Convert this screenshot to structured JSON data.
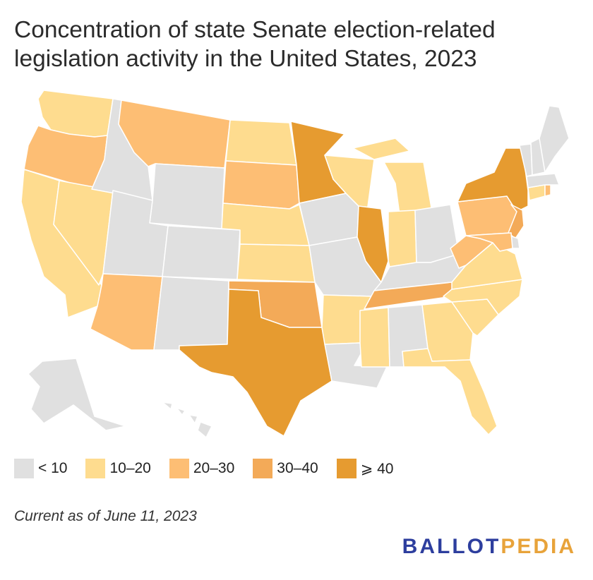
{
  "title": "Concentration of state Senate election-related legislation activity in the United States, 2023",
  "note": "Current as of June 11, 2023",
  "brand": {
    "part1": "BALLOT",
    "part2": "PEDIA",
    "color1": "#2d3e9e",
    "color2": "#e8a33a"
  },
  "colors": {
    "lt10": "#e0e0e0",
    "10to20": "#fedc8f",
    "20to30": "#fdbe74",
    "30to40": "#f3aa58",
    "gte40": "#e69b30",
    "border": "#ffffff"
  },
  "legend": [
    {
      "key": "lt10",
      "label": "< 10"
    },
    {
      "key": "10to20",
      "label": "10–20"
    },
    {
      "key": "20to30",
      "label": "20–30"
    },
    {
      "key": "30to40",
      "label": "30–40"
    },
    {
      "key": "gte40",
      "label": "⩾ 40"
    }
  ],
  "states": {
    "WA": "10to20",
    "OR": "20to30",
    "CA": "10to20",
    "NV": "10to20",
    "ID": "lt10",
    "MT": "20to30",
    "WY": "lt10",
    "UT": "lt10",
    "AZ": "20to30",
    "CO": "lt10",
    "NM": "lt10",
    "ND": "10to20",
    "SD": "20to30",
    "NE": "10to20",
    "KS": "10to20",
    "OK": "30to40",
    "TX": "gte40",
    "MN": "gte40",
    "IA": "lt10",
    "MO": "lt10",
    "AR": "10to20",
    "LA": "lt10",
    "WI": "10to20",
    "IL": "gte40",
    "MI": "10to20",
    "IN": "10to20",
    "OH": "lt10",
    "KY": "lt10",
    "TN": "30to40",
    "MS": "10to20",
    "AL": "lt10",
    "GA": "10to20",
    "FL": "10to20",
    "SC": "10to20",
    "NC": "10to20",
    "VA": "10to20",
    "WV": "20to30",
    "PA": "20to30",
    "NY": "gte40",
    "NJ": "30to40",
    "DE": "lt10",
    "MD": "20to30",
    "CT": "10to20",
    "RI": "20to30",
    "MA": "lt10",
    "VT": "lt10",
    "NH": "lt10",
    "ME": "lt10",
    "AK": "lt10",
    "HI": "lt10"
  }
}
